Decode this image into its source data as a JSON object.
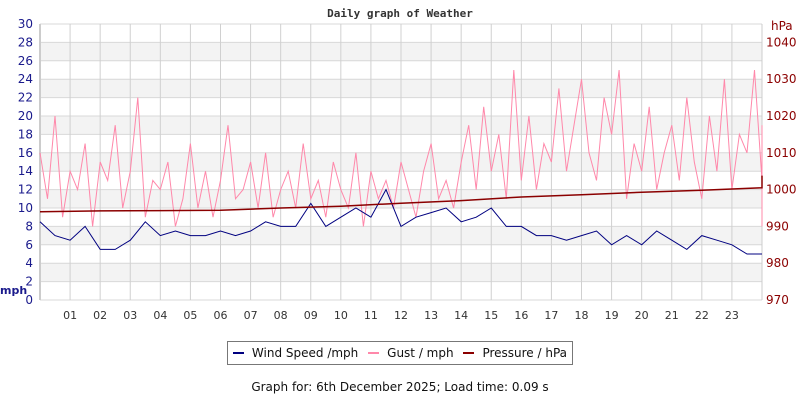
{
  "chart_data": {
    "type": "line",
    "title": "Daily graph of Weather",
    "ylabel_left": "mph",
    "ylabel_right": "hPa",
    "ylim_left": [
      0,
      30
    ],
    "ylim_right": [
      970,
      1045
    ],
    "xlim": [
      0,
      24
    ],
    "yticks_left": [
      "0",
      "2",
      "4",
      "6",
      "8",
      "10",
      "12",
      "14",
      "16",
      "18",
      "20",
      "22",
      "24",
      "26",
      "28",
      "30"
    ],
    "yticks_right": [
      "970",
      "980",
      "990",
      "1000",
      "1010",
      "1020",
      "1030",
      "1040"
    ],
    "xticks": [
      "01",
      "02",
      "03",
      "04",
      "05",
      "06",
      "07",
      "08",
      "09",
      "10",
      "11",
      "12",
      "13",
      "14",
      "15",
      "16",
      "17",
      "18",
      "19",
      "20",
      "21",
      "22",
      "23"
    ],
    "grid": true,
    "legend_placement": "bottom",
    "series": [
      {
        "name": "Wind Speed /mph",
        "color": "#000080",
        "axis": "left",
        "interval_hours": 0.5,
        "values": [
          8.5,
          7,
          6.5,
          8,
          5.5,
          5.5,
          6.5,
          8.5,
          7,
          7.5,
          7,
          7,
          7.5,
          7,
          7.5,
          8.5,
          8,
          8,
          10.5,
          8,
          9,
          10,
          9,
          12,
          8,
          9,
          9.5,
          10,
          8.5,
          9,
          10,
          8,
          8,
          7,
          7,
          6.5,
          7,
          7.5,
          6,
          7,
          6,
          7.5,
          6.5,
          5.5,
          7,
          6.5,
          6,
          5,
          5
        ]
      },
      {
        "name": "Gust / mph",
        "color": "#ff88aa",
        "axis": "left",
        "interval_hours": 0.25,
        "values": [
          16,
          11,
          20,
          9,
          14,
          12,
          17,
          8,
          15,
          13,
          19,
          10,
          14,
          22,
          9,
          13,
          12,
          15,
          8,
          11,
          17,
          10,
          14,
          9,
          13,
          19,
          11,
          12,
          15,
          10,
          16,
          9,
          12,
          14,
          10,
          17,
          11,
          13,
          9,
          15,
          12,
          10,
          16,
          8,
          14,
          11,
          13,
          10,
          15,
          12,
          9,
          14,
          17,
          11,
          13,
          10,
          15,
          19,
          12,
          21,
          14,
          18,
          11,
          25,
          13,
          20,
          12,
          17,
          15,
          23,
          14,
          19,
          24,
          16,
          13,
          22,
          18,
          25,
          11,
          17,
          14,
          21,
          12,
          16,
          19,
          13,
          22,
          15,
          11,
          20,
          14,
          24,
          12,
          18,
          16,
          25,
          13,
          17,
          12,
          15,
          11,
          18,
          10,
          14,
          16,
          12,
          17,
          13,
          10,
          19,
          12,
          14,
          11,
          16,
          9,
          12,
          19,
          11,
          15,
          13,
          10,
          16,
          12,
          14,
          11,
          17,
          13,
          9,
          19,
          12,
          15,
          11,
          13,
          10,
          14,
          12,
          16,
          10,
          13,
          11,
          15,
          9,
          12,
          14,
          10,
          13,
          8,
          12
        ]
      },
      {
        "name": "Pressure / hPa",
        "color": "#8b0000",
        "axis": "right",
        "interval_hours": 2,
        "values": [
          994,
          994.2,
          994.3,
          994.4,
          995,
          995.5,
          996.3,
          997,
          998,
          998.6,
          999.3,
          999.8,
          1000.5,
          1001.5,
          1002.1,
          1002.6,
          1003.1,
          1003.4,
          1003.6,
          1003.8
        ]
      }
    ]
  },
  "legend": [
    "Wind Speed /mph",
    "Gust / mph",
    "Pressure / hPa"
  ],
  "footer": "Graph for: 6th December 2025; Load time: 0.09 s"
}
